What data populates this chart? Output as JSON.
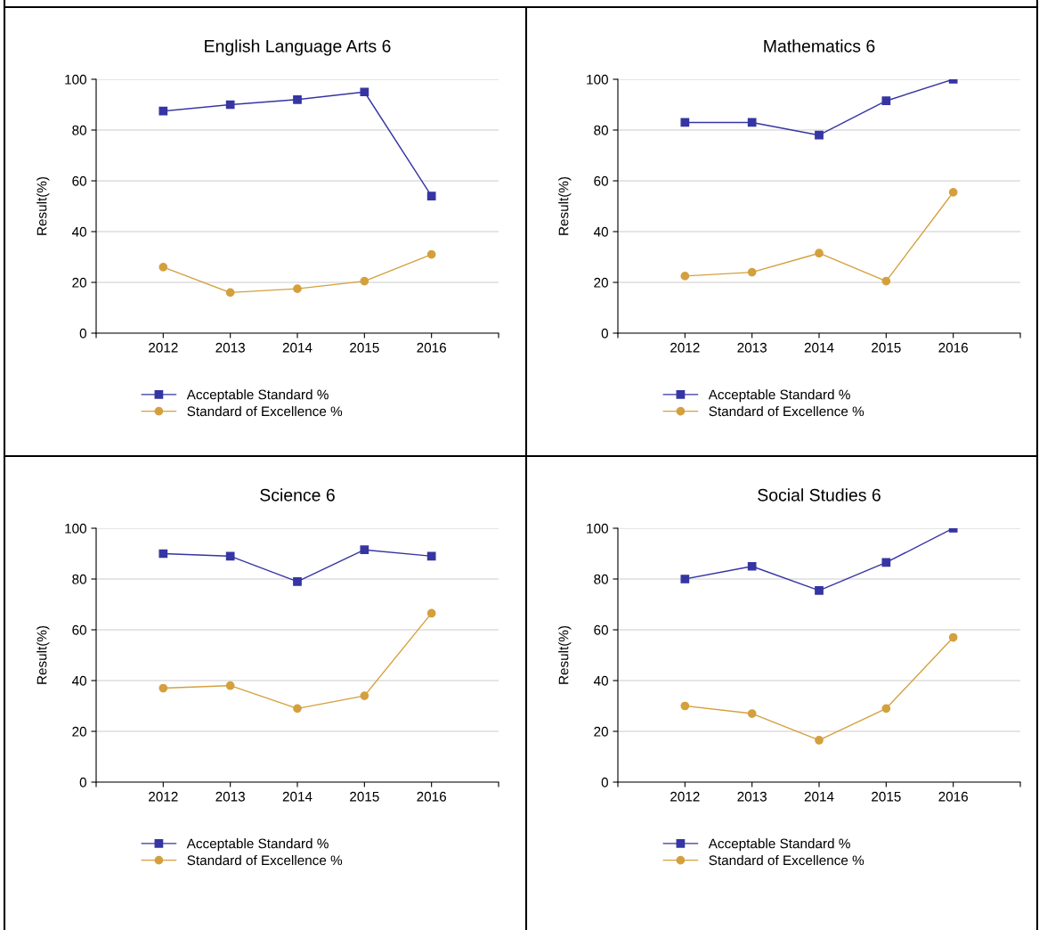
{
  "chart_data": [
    {
      "type": "line",
      "title": "English Language Arts 6",
      "ylabel": "Result(%)",
      "categories": [
        "2012",
        "2013",
        "2014",
        "2015",
        "2016"
      ],
      "ylim": [
        0,
        100
      ],
      "yticks": [
        0,
        20,
        40,
        60,
        80,
        100
      ],
      "grid": "y",
      "legend": "bottom",
      "series": [
        {
          "name": "Acceptable Standard %",
          "color": "#3535a3",
          "marker": "square",
          "values": [
            87.5,
            90,
            92,
            95,
            54
          ]
        },
        {
          "name": "Standard of Excellence %",
          "color": "#d4a03e",
          "marker": "circle",
          "values": [
            26,
            16,
            17.5,
            20.5,
            31
          ]
        }
      ]
    },
    {
      "type": "line",
      "title": "Mathematics 6",
      "ylabel": "Result(%)",
      "categories": [
        "2012",
        "2013",
        "2014",
        "2015",
        "2016"
      ],
      "ylim": [
        0,
        100
      ],
      "yticks": [
        0,
        20,
        40,
        60,
        80,
        100
      ],
      "grid": "y",
      "legend": "bottom",
      "series": [
        {
          "name": "Acceptable Standard %",
          "color": "#3535a3",
          "marker": "square",
          "values": [
            83,
            83,
            78,
            91.5,
            100
          ]
        },
        {
          "name": "Standard of Excellence %",
          "color": "#d4a03e",
          "marker": "circle",
          "values": [
            22.5,
            24,
            31.5,
            20.5,
            55.5
          ]
        }
      ]
    },
    {
      "type": "line",
      "title": "Science 6",
      "ylabel": "Result(%)",
      "categories": [
        "2012",
        "2013",
        "2014",
        "2015",
        "2016"
      ],
      "ylim": [
        0,
        100
      ],
      "yticks": [
        0,
        20,
        40,
        60,
        80,
        100
      ],
      "grid": "y",
      "legend": "bottom",
      "series": [
        {
          "name": "Acceptable Standard %",
          "color": "#3535a3",
          "marker": "square",
          "values": [
            90,
            89,
            79,
            91.5,
            89
          ]
        },
        {
          "name": "Standard of Excellence %",
          "color": "#d4a03e",
          "marker": "circle",
          "values": [
            37,
            38,
            29,
            34,
            66.5
          ]
        }
      ]
    },
    {
      "type": "line",
      "title": "Social Studies 6",
      "ylabel": "Result(%)",
      "categories": [
        "2012",
        "2013",
        "2014",
        "2015",
        "2016"
      ],
      "ylim": [
        0,
        100
      ],
      "yticks": [
        0,
        20,
        40,
        60,
        80,
        100
      ],
      "grid": "y",
      "legend": "bottom",
      "series": [
        {
          "name": "Acceptable Standard %",
          "color": "#3535a3",
          "marker": "square",
          "values": [
            80,
            85,
            75.5,
            86.5,
            100
          ]
        },
        {
          "name": "Standard of Excellence %",
          "color": "#d4a03e",
          "marker": "circle",
          "values": [
            30,
            27,
            16.5,
            29,
            57
          ]
        }
      ]
    }
  ]
}
